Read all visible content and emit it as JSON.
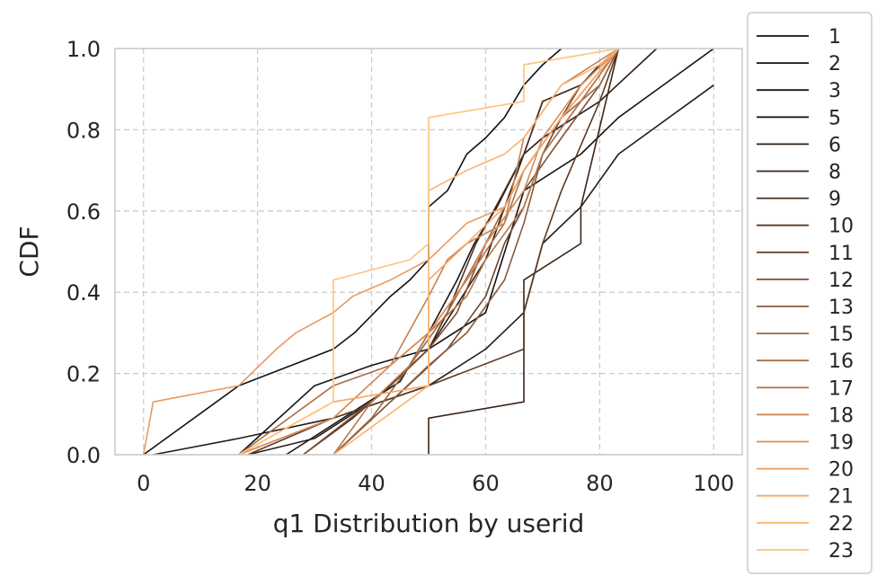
{
  "chart_data": {
    "type": "line",
    "subtype": "ecdf-step",
    "xlabel": "q1 Distribution by userid",
    "ylabel": "CDF",
    "xlim": [
      -5,
      105
    ],
    "ylim": [
      0,
      1
    ],
    "xticks": [
      "0",
      "20",
      "40",
      "60",
      "80",
      "100"
    ],
    "yticks": [
      "0.0",
      "0.2",
      "0.4",
      "0.6",
      "0.8",
      "1.0"
    ],
    "grid": true,
    "grid_style": "dashed",
    "legend_position": "outside-right",
    "series": [
      {
        "name": "1",
        "color": "#111111",
        "x": [
          0,
          16.7,
          33.3,
          37,
          43.3,
          46.7,
          50,
          50,
          53.3,
          56.7,
          60,
          63.3,
          66.7,
          70,
          73.3
        ],
        "y": [
          0,
          0.17,
          0.26,
          0.3,
          0.39,
          0.43,
          0.48,
          0.61,
          0.65,
          0.74,
          0.78,
          0.83,
          0.91,
          0.96,
          1.0
        ]
      },
      {
        "name": "2",
        "color": "#151312",
        "x": [
          16.7,
          30,
          40,
          50,
          60,
          66.7,
          76.7,
          83.3,
          100
        ],
        "y": [
          0,
          0.17,
          0.22,
          0.26,
          0.35,
          0.65,
          0.74,
          0.83,
          1.0
        ]
      },
      {
        "name": "3",
        "color": "#1b1714",
        "x": [
          25,
          35,
          45,
          50,
          55,
          58,
          62,
          66.7,
          70,
          76.7,
          80,
          83.3
        ],
        "y": [
          0,
          0.09,
          0.18,
          0.3,
          0.43,
          0.52,
          0.61,
          0.74,
          0.87,
          0.91,
          0.96,
          1.0
        ]
      },
      {
        "name": "5",
        "color": "#241a14",
        "x": [
          1.7,
          16.7,
          33.3,
          50,
          60,
          66.7,
          70,
          76.7,
          83.3,
          100
        ],
        "y": [
          0,
          0.04,
          0.09,
          0.17,
          0.26,
          0.35,
          0.52,
          0.61,
          0.74,
          0.91
        ]
      },
      {
        "name": "6",
        "color": "#2e1e14",
        "x": [
          18.3,
          30,
          40,
          50,
          60,
          66.7,
          70,
          80,
          90
        ],
        "y": [
          0,
          0.04,
          0.13,
          0.26,
          0.48,
          0.74,
          0.78,
          0.87,
          1.0
        ]
      },
      {
        "name": "8",
        "color": "#3b2618",
        "x": [
          50,
          50,
          66.7,
          66.7,
          76.7,
          76.7,
          83.3
        ],
        "y": [
          0,
          0.09,
          0.13,
          0.43,
          0.52,
          0.61,
          1.0
        ]
      },
      {
        "name": "9",
        "color": "#4a3020",
        "x": [
          28,
          36.7,
          43.3,
          50,
          53.3,
          58.3,
          63.3,
          66.7,
          70,
          76.7,
          83.3
        ],
        "y": [
          0,
          0.09,
          0.17,
          0.26,
          0.35,
          0.52,
          0.65,
          0.74,
          0.87,
          0.91,
          1.0
        ]
      },
      {
        "name": "10",
        "color": "#5c3a26",
        "x": [
          18.3,
          33.3,
          50,
          66.7,
          66.7,
          70,
          73.3,
          80,
          83.3
        ],
        "y": [
          0,
          0.09,
          0.17,
          0.26,
          0.35,
          0.52,
          0.65,
          0.87,
          1.0
        ]
      },
      {
        "name": "11",
        "color": "#6e4530",
        "x": [
          33.3,
          43.3,
          53.3,
          60,
          63.3,
          66.7,
          70,
          73.3,
          76.7,
          83.3
        ],
        "y": [
          0,
          0.13,
          0.26,
          0.39,
          0.52,
          0.61,
          0.74,
          0.83,
          0.91,
          1.0
        ]
      },
      {
        "name": "12",
        "color": "#7d5036",
        "x": [
          28,
          40,
          50,
          55,
          60,
          66.7,
          73.3,
          80,
          83.3
        ],
        "y": [
          0,
          0.13,
          0.26,
          0.35,
          0.52,
          0.65,
          0.78,
          0.91,
          1.0
        ]
      },
      {
        "name": "13",
        "color": "#8a5a3c",
        "x": [
          33.3,
          43.3,
          50,
          56.7,
          63.3,
          66.7,
          70,
          76.7,
          83.3
        ],
        "y": [
          0,
          0.13,
          0.22,
          0.3,
          0.43,
          0.57,
          0.74,
          0.87,
          1.0
        ]
      },
      {
        "name": "15",
        "color": "#9a6642",
        "x": [
          33.3,
          40,
          46.7,
          53.3,
          60,
          66.7,
          73.3,
          80,
          83.3
        ],
        "y": [
          0,
          0.09,
          0.22,
          0.35,
          0.52,
          0.7,
          0.83,
          0.91,
          1.0
        ]
      },
      {
        "name": "16",
        "color": "#a87048",
        "x": [
          16.7,
          33.3,
          43.3,
          50,
          56.7,
          63.3,
          66.7,
          73.3,
          83.3
        ],
        "y": [
          0,
          0.17,
          0.22,
          0.3,
          0.43,
          0.57,
          0.7,
          0.83,
          1.0
        ]
      },
      {
        "name": "17",
        "color": "#b6784e",
        "x": [
          33.3,
          40,
          46.7,
          50,
          56.7,
          60,
          66.7,
          70,
          76.7,
          83.3
        ],
        "y": [
          0,
          0.13,
          0.22,
          0.3,
          0.39,
          0.48,
          0.61,
          0.74,
          0.87,
          1.0
        ]
      },
      {
        "name": "18",
        "color": "#c48252",
        "x": [
          16.7,
          33.3,
          43.3,
          50,
          53.3,
          56.7,
          63.3,
          66.7,
          73.3,
          83.3
        ],
        "y": [
          0,
          0.09,
          0.22,
          0.39,
          0.48,
          0.52,
          0.57,
          0.78,
          0.91,
          1.0
        ]
      },
      {
        "name": "19",
        "color": "#d88c58",
        "x": [
          16.7,
          33.3,
          43.3,
          50,
          56.7,
          60,
          66.7,
          70,
          76.7,
          83.3
        ],
        "y": [
          0,
          0.09,
          0.22,
          0.3,
          0.43,
          0.52,
          0.65,
          0.78,
          0.91,
          1.0
        ]
      },
      {
        "name": "20",
        "color": "#eb995f",
        "x": [
          0,
          1.7,
          16.7,
          23.3,
          26.7,
          33.3,
          36.7,
          43.3,
          50,
          56.7,
          63.3,
          66.7,
          73.3,
          83.3
        ],
        "y": [
          0,
          0.13,
          0.17,
          0.26,
          0.3,
          0.35,
          0.39,
          0.43,
          0.48,
          0.57,
          0.61,
          0.7,
          0.83,
          1.0
        ]
      },
      {
        "name": "21",
        "color": "#f5a665",
        "x": [
          16.7,
          33.3,
          50,
          50,
          56.7,
          63.3,
          66.7,
          73.3,
          83.3
        ],
        "y": [
          0,
          0.13,
          0.17,
          0.43,
          0.52,
          0.61,
          0.7,
          0.83,
          1.0
        ]
      },
      {
        "name": "22",
        "color": "#fbb470",
        "x": [
          33.3,
          50,
          50,
          56.7,
          63.3,
          66.7,
          73.3,
          80,
          83.3
        ],
        "y": [
          0,
          0.17,
          0.65,
          0.7,
          0.74,
          0.78,
          0.91,
          0.96,
          1.0
        ]
      },
      {
        "name": "23",
        "color": "#ffc27a",
        "x": [
          16.7,
          33.3,
          33.3,
          46.7,
          50,
          50,
          66.7,
          66.7,
          83.3
        ],
        "y": [
          0,
          0.13,
          0.43,
          0.48,
          0.52,
          0.83,
          0.87,
          0.96,
          1.0
        ]
      }
    ]
  }
}
